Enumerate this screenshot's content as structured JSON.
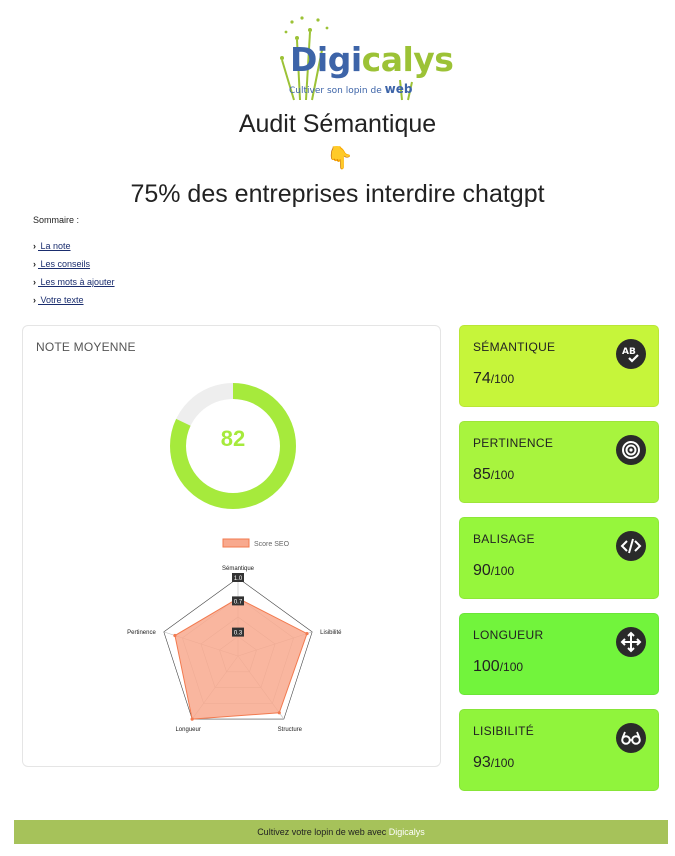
{
  "logo": {
    "word_a": "Digi",
    "word_b": "calys",
    "tagline": "Cultiver son lopin de",
    "tagline_em": "web"
  },
  "header": {
    "title": "Audit Sémantique",
    "pointer": "👇",
    "subject": "75% des entreprises interdire chatgpt"
  },
  "summary": {
    "title": "Sommaire :",
    "items": [
      " La note",
      " Les conseils",
      " Les mots à ajouter",
      " Votre texte"
    ]
  },
  "main_card": {
    "label": "NOTE MOYENNE",
    "score": "82",
    "score_value": 82
  },
  "stats": [
    {
      "name": "SÉMANTIQUE",
      "value": "74",
      "suffix": "/100",
      "icon": "ab-check-icon",
      "color": "#c6f53a"
    },
    {
      "name": "PERTINENCE",
      "value": "85",
      "suffix": "/100",
      "icon": "target-icon",
      "color": "#a8f43e"
    },
    {
      "name": "BALISAGE",
      "value": "90",
      "suffix": "/100",
      "icon": "code-icon",
      "color": "#96f63c"
    },
    {
      "name": "LONGUEUR",
      "value": "100",
      "suffix": "/100",
      "icon": "move-arrows-icon",
      "color": "#72f43c"
    },
    {
      "name": "LISIBILITÉ",
      "value": "93",
      "suffix": "/100",
      "icon": "glasses-icon",
      "color": "#90f43c"
    }
  ],
  "chart_data": {
    "type": "radar",
    "legend": "Score SEO",
    "legend_placement": "top",
    "axes": [
      "Sémantique",
      "Lisibilité",
      "Structure",
      "Longueur",
      "Pertinence"
    ],
    "values": [
      0.74,
      0.93,
      0.9,
      1.0,
      0.85
    ],
    "ticks": [
      "1.0",
      "0.7",
      "0.3"
    ],
    "range": [
      0,
      1
    ],
    "fill_color": "#f8a98e",
    "stroke_color": "#f27a4f"
  },
  "colors": {
    "donut": "#a6ea3c",
    "footer": "#a6c25a"
  },
  "footer": {
    "text": "Cultivez votre lopin de web avec",
    "brand": "Digicalys"
  }
}
